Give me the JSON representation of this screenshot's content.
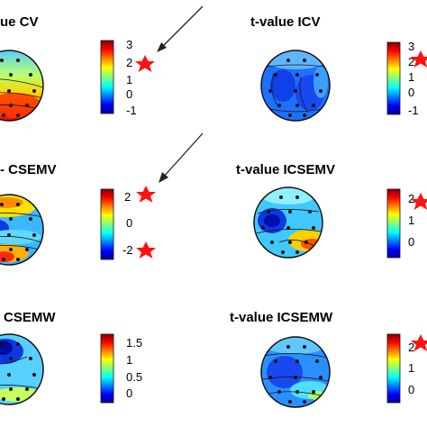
{
  "panels": [
    {
      "id": "cv",
      "title": "ue CV",
      "colorbar_ticks": [
        "3",
        "2",
        "1",
        "0",
        "-1"
      ],
      "stars": 1,
      "arrow": true,
      "map": "warm-bottom"
    },
    {
      "id": "icv",
      "title": "t-value ICV",
      "colorbar_ticks": [
        "3",
        "2",
        "1",
        "0",
        "-1"
      ],
      "stars": 1,
      "arrow": false,
      "map": "cool"
    },
    {
      "id": "csemv",
      "title": "- CSEMV",
      "colorbar_ticks": [
        "2",
        "0",
        "-2"
      ],
      "stars": 2,
      "arrow": true,
      "map": "mixed"
    },
    {
      "id": "icsemv",
      "title": "t-value ICSEMV",
      "colorbar_ticks": [
        "2",
        "1",
        "0"
      ],
      "stars": 1,
      "arrow": false,
      "map": "mild"
    },
    {
      "id": "csemw",
      "title": "CSEMW",
      "colorbar_ticks": [
        "1.5",
        "1",
        "0.5",
        "0"
      ],
      "stars": 0,
      "arrow": false,
      "map": "blue-top"
    },
    {
      "id": "icsemw",
      "title": "t-value ICSEMW",
      "colorbar_ticks": [
        "2",
        "1",
        "0"
      ],
      "stars": 1,
      "arrow": false,
      "map": "mild"
    }
  ],
  "colors": {
    "star": "#ff1111",
    "arrow": "#222222",
    "contour": "#1a1a1a",
    "electrode": "#111111"
  },
  "colormap": "jet"
}
